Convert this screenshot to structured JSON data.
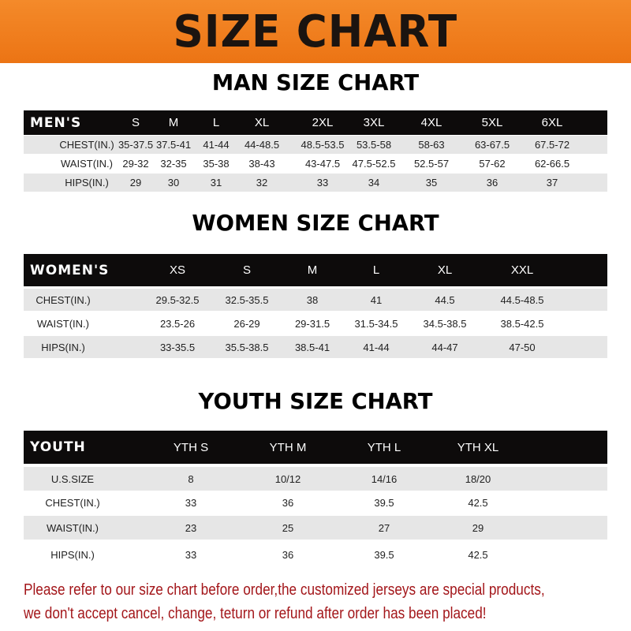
{
  "title": "SIZE CHART",
  "men": {
    "heading": "MAN SIZE CHART",
    "header": [
      "MEN'S",
      "S",
      "M",
      "L",
      "XL",
      "2XL",
      "3XL",
      "4XL",
      "5XL",
      "6XL"
    ],
    "rows": [
      [
        "CHEST(IN.)",
        "35-37.5",
        "37.5-41",
        "41-44",
        "44-48.5",
        "48.5-53.5",
        "53.5-58",
        "58-63",
        "63-67.5",
        "67.5-72"
      ],
      [
        "WAIST(IN.)",
        "29-32",
        "32-35",
        "35-38",
        "38-43",
        "43-47.5",
        "47.5-52.5",
        "52.5-57",
        "57-62",
        "62-66.5"
      ],
      [
        "HIPS(IN.)",
        "29",
        "30",
        "31",
        "32",
        "33",
        "34",
        "35",
        "36",
        "37"
      ]
    ]
  },
  "women": {
    "heading": "WOMEN SIZE CHART",
    "header": [
      "WOMEN'S",
      "XS",
      "S",
      "M",
      "L",
      "XL",
      "XXL"
    ],
    "rows": [
      [
        "CHEST(IN.)",
        "29.5-32.5",
        "32.5-35.5",
        "38",
        "41",
        "44.5",
        "44.5-48.5"
      ],
      [
        "WAIST(IN.)",
        "23.5-26",
        "26-29",
        "29-31.5",
        "31.5-34.5",
        "34.5-38.5",
        "38.5-42.5"
      ],
      [
        "HIPS(IN.)",
        "33-35.5",
        "35.5-38.5",
        "38.5-41",
        "41-44",
        "44-47",
        "47-50"
      ]
    ]
  },
  "youth": {
    "heading": "YOUTH SIZE CHART",
    "header": [
      "YOUTH",
      "YTH S",
      "YTH M",
      "YTH L",
      "YTH XL"
    ],
    "rows": [
      [
        "U.S.SIZE",
        "8",
        "10/12",
        "14/16",
        "18/20"
      ],
      [
        "CHEST(IN.)",
        "33",
        "36",
        "39.5",
        "42.5"
      ],
      [
        "WAIST(IN.)",
        "23",
        "25",
        "27",
        "29"
      ],
      [
        "HIPS(IN.)",
        "33",
        "36",
        "39.5",
        "42.5"
      ]
    ]
  },
  "footer": {
    "line1": "Please refer to our size chart before order,the customized jerseys are special products,",
    "line2": "we don't accept cancel, change, teturn or refund after order has been placed!"
  },
  "colors": {
    "banner": "#ec7414",
    "header_row": "#0d0b0b",
    "stripe": "#e6e6e6",
    "footer_text": "#a3161a"
  }
}
